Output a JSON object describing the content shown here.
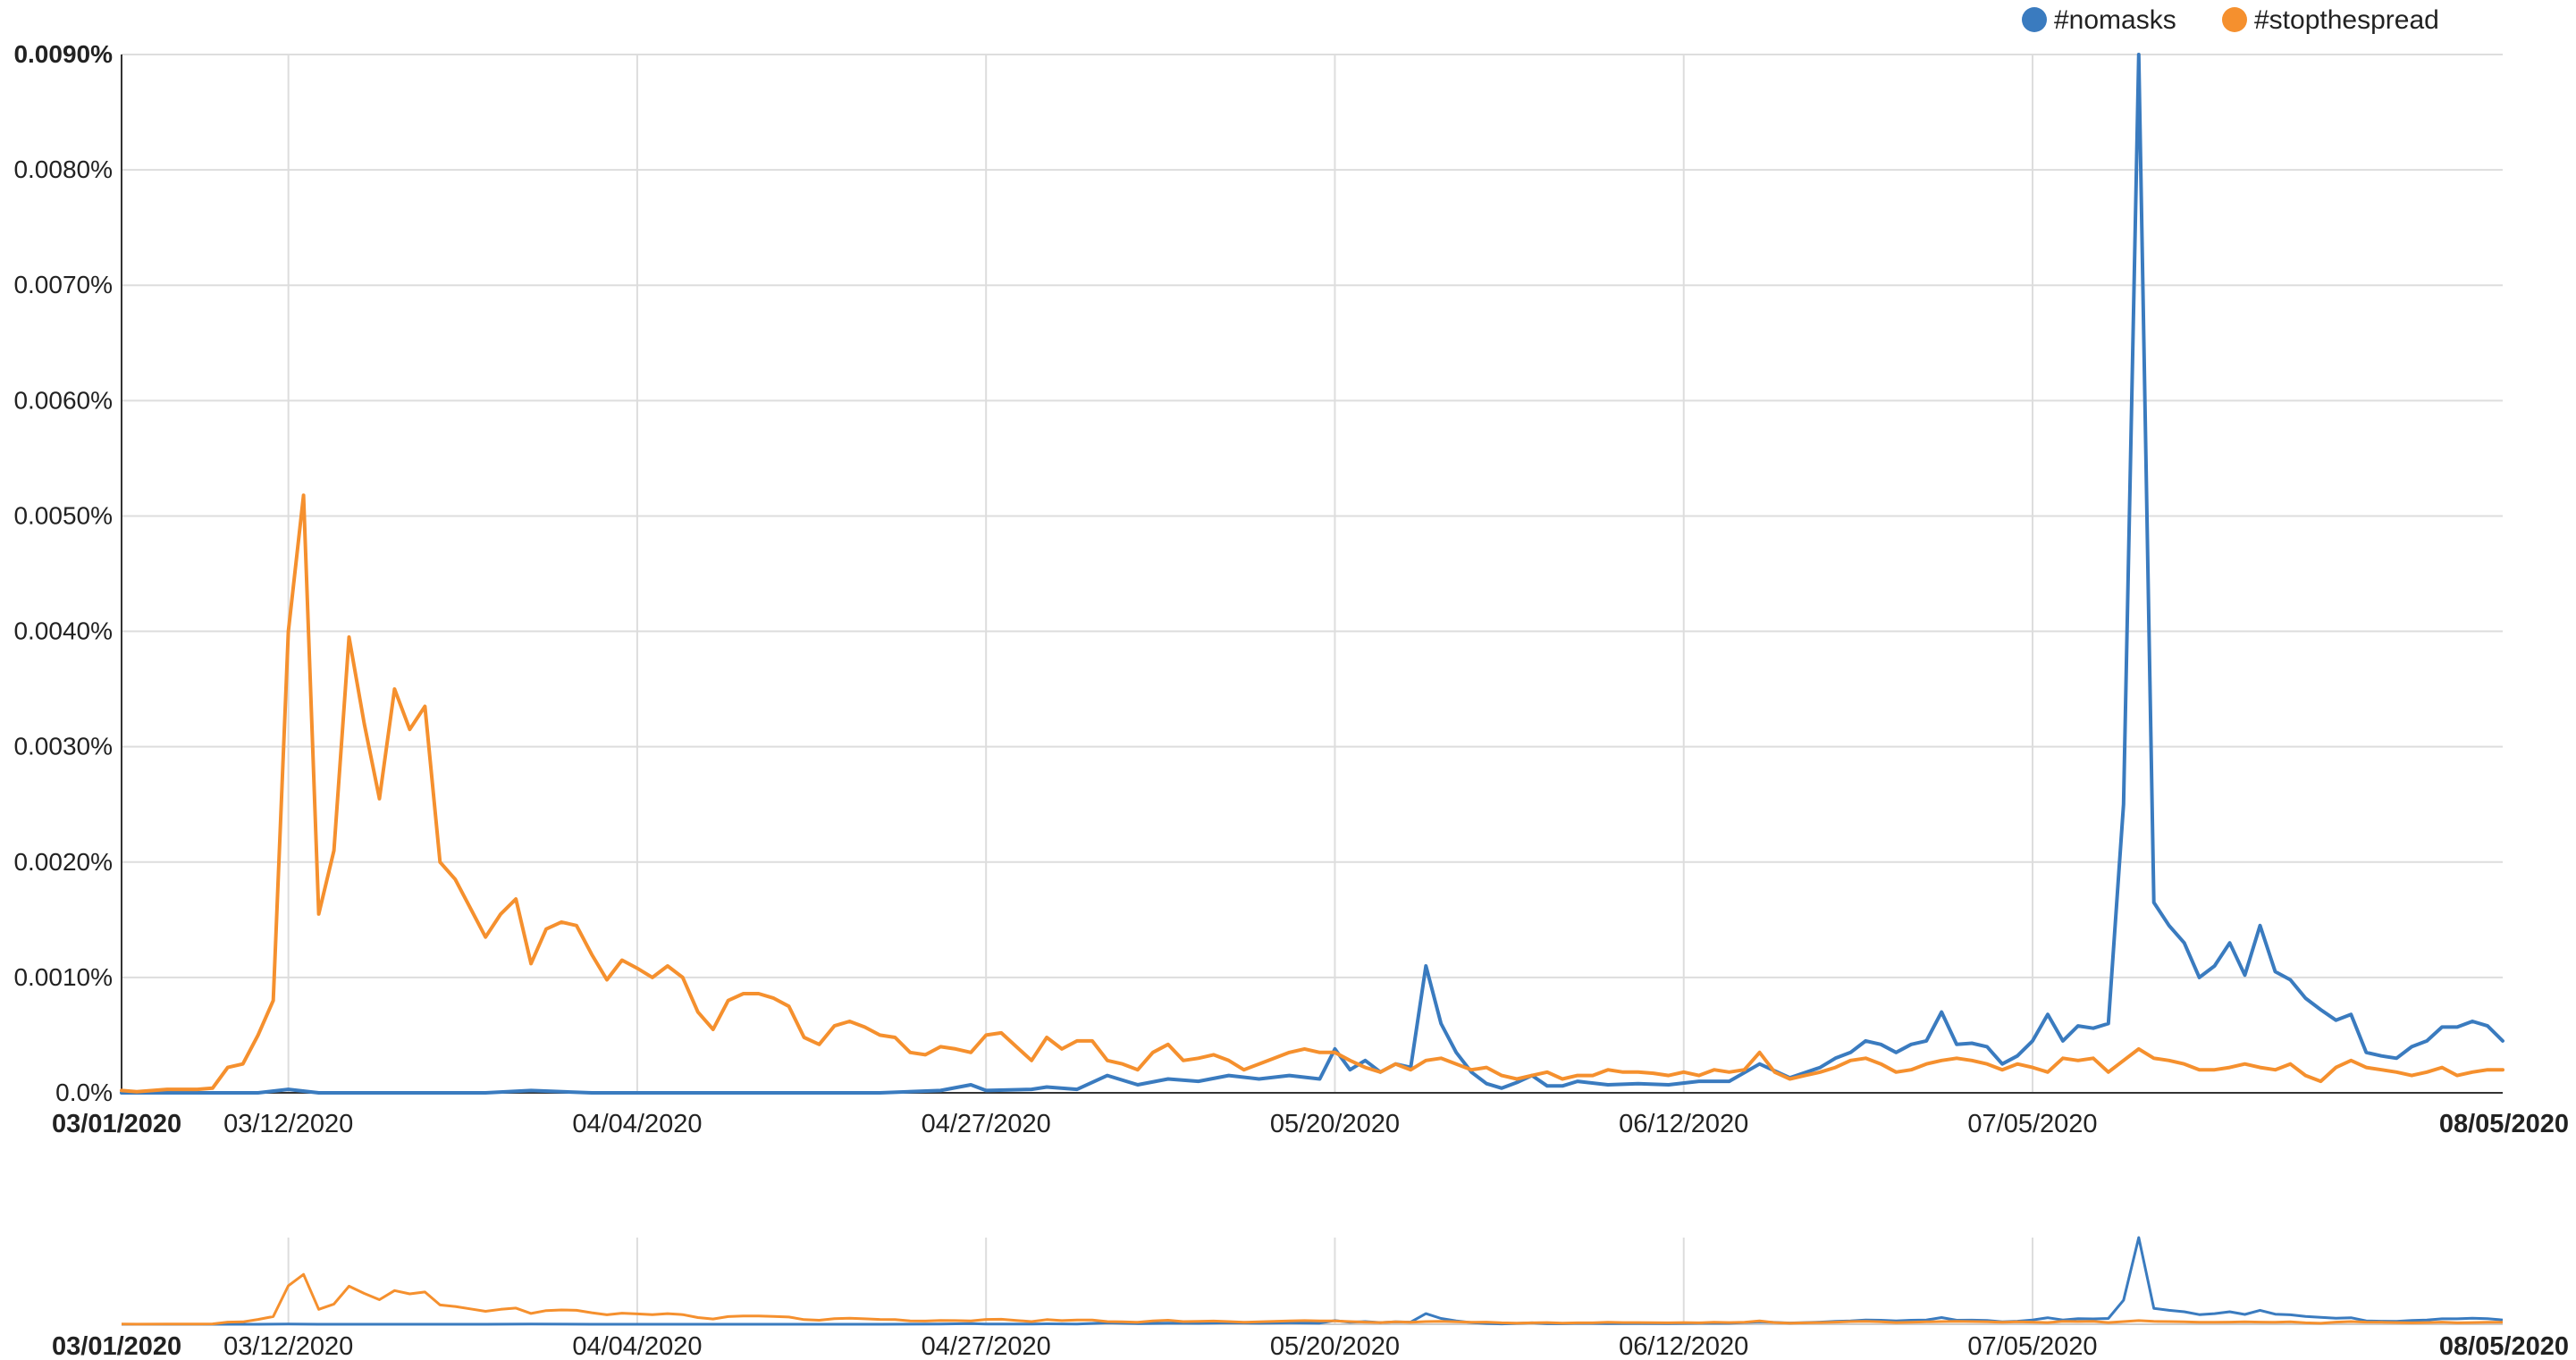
{
  "chart_data": {
    "type": "line",
    "title": "",
    "xlabel": "",
    "ylabel": "",
    "grid": true,
    "legend_position": "top-right",
    "x_range": [
      "2020-03-01",
      "2020-08-05"
    ],
    "ylim": [
      0,
      0.009
    ],
    "y_unit": "%",
    "y_ticks": [
      "0.0%",
      "0.0010%",
      "0.0020%",
      "0.0030%",
      "0.0040%",
      "0.0050%",
      "0.0060%",
      "0.0070%",
      "0.0080%",
      "0.0090%"
    ],
    "y_tick_values": [
      0,
      0.001,
      0.002,
      0.003,
      0.004,
      0.005,
      0.006,
      0.007,
      0.008,
      0.009
    ],
    "x_ticks": [
      "03/01/2020",
      "03/12/2020",
      "04/04/2020",
      "04/27/2020",
      "05/20/2020",
      "06/12/2020",
      "07/05/2020",
      "08/05/2020"
    ],
    "x_tick_dates": [
      "2020-03-01",
      "2020-03-12",
      "2020-04-04",
      "2020-04-27",
      "2020-05-20",
      "2020-06-12",
      "2020-07-05",
      "2020-08-05"
    ],
    "series": [
      {
        "name": "#nomasks",
        "color": "#3a7bbf",
        "points": [
          [
            "2020-03-01",
            0
          ],
          [
            "2020-03-06",
            0
          ],
          [
            "2020-03-10",
            0
          ],
          [
            "2020-03-12",
            3e-05
          ],
          [
            "2020-03-14",
            0
          ],
          [
            "2020-03-20",
            0
          ],
          [
            "2020-03-25",
            0
          ],
          [
            "2020-03-28",
            2e-05
          ],
          [
            "2020-04-01",
            0
          ],
          [
            "2020-04-10",
            0
          ],
          [
            "2020-04-20",
            0
          ],
          [
            "2020-04-24",
            2e-05
          ],
          [
            "2020-04-26",
            7e-05
          ],
          [
            "2020-04-27",
            2e-05
          ],
          [
            "2020-04-30",
            3e-05
          ],
          [
            "2020-05-01",
            5e-05
          ],
          [
            "2020-05-03",
            3e-05
          ],
          [
            "2020-05-05",
            0.00015
          ],
          [
            "2020-05-07",
            7e-05
          ],
          [
            "2020-05-09",
            0.00012
          ],
          [
            "2020-05-11",
            0.0001
          ],
          [
            "2020-05-13",
            0.00015
          ],
          [
            "2020-05-15",
            0.00012
          ],
          [
            "2020-05-17",
            0.00015
          ],
          [
            "2020-05-19",
            0.00012
          ],
          [
            "2020-05-20",
            0.00038
          ],
          [
            "2020-05-21",
            0.0002
          ],
          [
            "2020-05-22",
            0.00028
          ],
          [
            "2020-05-23",
            0.00018
          ],
          [
            "2020-05-24",
            0.00025
          ],
          [
            "2020-05-25",
            0.00022
          ],
          [
            "2020-05-26",
            0.0011
          ],
          [
            "2020-05-27",
            0.0006
          ],
          [
            "2020-05-28",
            0.00035
          ],
          [
            "2020-05-29",
            0.00018
          ],
          [
            "2020-05-30",
            8e-05
          ],
          [
            "2020-05-31",
            4e-05
          ],
          [
            "2020-06-01",
            9e-05
          ],
          [
            "2020-06-02",
            0.00015
          ],
          [
            "2020-06-03",
            6e-05
          ],
          [
            "2020-06-04",
            6e-05
          ],
          [
            "2020-06-05",
            0.0001
          ],
          [
            "2020-06-07",
            7e-05
          ],
          [
            "2020-06-09",
            8e-05
          ],
          [
            "2020-06-11",
            7e-05
          ],
          [
            "2020-06-13",
            0.0001
          ],
          [
            "2020-06-15",
            0.0001
          ],
          [
            "2020-06-17",
            0.00025
          ],
          [
            "2020-06-19",
            0.00013
          ],
          [
            "2020-06-21",
            0.00022
          ],
          [
            "2020-06-22",
            0.0003
          ],
          [
            "2020-06-23",
            0.00035
          ],
          [
            "2020-06-24",
            0.00045
          ],
          [
            "2020-06-25",
            0.00042
          ],
          [
            "2020-06-26",
            0.00035
          ],
          [
            "2020-06-27",
            0.00042
          ],
          [
            "2020-06-28",
            0.00045
          ],
          [
            "2020-06-29",
            0.0007
          ],
          [
            "2020-06-30",
            0.00042
          ],
          [
            "2020-07-01",
            0.00043
          ],
          [
            "2020-07-02",
            0.0004
          ],
          [
            "2020-07-03",
            0.00025
          ],
          [
            "2020-07-04",
            0.00032
          ],
          [
            "2020-07-05",
            0.00045
          ],
          [
            "2020-07-06",
            0.00068
          ],
          [
            "2020-07-07",
            0.00045
          ],
          [
            "2020-07-08",
            0.00058
          ],
          [
            "2020-07-09",
            0.00056
          ],
          [
            "2020-07-10",
            0.0006
          ],
          [
            "2020-07-11",
            0.0025
          ],
          [
            "2020-07-12",
            0.009
          ],
          [
            "2020-07-13",
            0.00165
          ],
          [
            "2020-07-14",
            0.00145
          ],
          [
            "2020-07-15",
            0.0013
          ],
          [
            "2020-07-16",
            0.001
          ],
          [
            "2020-07-17",
            0.0011
          ],
          [
            "2020-07-18",
            0.0013
          ],
          [
            "2020-07-19",
            0.00102
          ],
          [
            "2020-07-20",
            0.00145
          ],
          [
            "2020-07-21",
            0.00105
          ],
          [
            "2020-07-22",
            0.00098
          ],
          [
            "2020-07-23",
            0.00082
          ],
          [
            "2020-07-24",
            0.00072
          ],
          [
            "2020-07-25",
            0.00063
          ],
          [
            "2020-07-26",
            0.00068
          ],
          [
            "2020-07-27",
            0.00035
          ],
          [
            "2020-07-28",
            0.00032
          ],
          [
            "2020-07-29",
            0.0003
          ],
          [
            "2020-07-30",
            0.0004
          ],
          [
            "2020-07-31",
            0.00045
          ],
          [
            "2020-08-01",
            0.00057
          ],
          [
            "2020-08-02",
            0.00057
          ],
          [
            "2020-08-03",
            0.00062
          ],
          [
            "2020-08-04",
            0.00058
          ],
          [
            "2020-08-05",
            0.00045
          ]
        ]
      },
      {
        "name": "#stopthespread",
        "color": "#f5902e",
        "points": [
          [
            "2020-03-01",
            2e-05
          ],
          [
            "2020-03-02",
            1e-05
          ],
          [
            "2020-03-04",
            3e-05
          ],
          [
            "2020-03-06",
            3e-05
          ],
          [
            "2020-03-07",
            4e-05
          ],
          [
            "2020-03-08",
            0.00022
          ],
          [
            "2020-03-09",
            0.00025
          ],
          [
            "2020-03-10",
            0.0005
          ],
          [
            "2020-03-11",
            0.0008
          ],
          [
            "2020-03-12",
            0.004
          ],
          [
            "2020-03-13",
            0.00518
          ],
          [
            "2020-03-14",
            0.00155
          ],
          [
            "2020-03-15",
            0.0021
          ],
          [
            "2020-03-16",
            0.00395
          ],
          [
            "2020-03-17",
            0.0032
          ],
          [
            "2020-03-18",
            0.00255
          ],
          [
            "2020-03-19",
            0.0035
          ],
          [
            "2020-03-20",
            0.00315
          ],
          [
            "2020-03-21",
            0.00335
          ],
          [
            "2020-03-22",
            0.002
          ],
          [
            "2020-03-23",
            0.00185
          ],
          [
            "2020-03-24",
            0.0016
          ],
          [
            "2020-03-25",
            0.00135
          ],
          [
            "2020-03-26",
            0.00155
          ],
          [
            "2020-03-27",
            0.00168
          ],
          [
            "2020-03-28",
            0.00112
          ],
          [
            "2020-03-29",
            0.00142
          ],
          [
            "2020-03-30",
            0.00148
          ],
          [
            "2020-03-31",
            0.00145
          ],
          [
            "2020-04-01",
            0.0012
          ],
          [
            "2020-04-02",
            0.00098
          ],
          [
            "2020-04-03",
            0.00115
          ],
          [
            "2020-04-04",
            0.00108
          ],
          [
            "2020-04-05",
            0.001
          ],
          [
            "2020-04-06",
            0.0011
          ],
          [
            "2020-04-07",
            0.001
          ],
          [
            "2020-04-08",
            0.0007
          ],
          [
            "2020-04-09",
            0.00055
          ],
          [
            "2020-04-10",
            0.0008
          ],
          [
            "2020-04-11",
            0.00086
          ],
          [
            "2020-04-12",
            0.00086
          ],
          [
            "2020-04-13",
            0.00082
          ],
          [
            "2020-04-14",
            0.00075
          ],
          [
            "2020-04-15",
            0.00048
          ],
          [
            "2020-04-16",
            0.00042
          ],
          [
            "2020-04-17",
            0.00058
          ],
          [
            "2020-04-18",
            0.00062
          ],
          [
            "2020-04-19",
            0.00057
          ],
          [
            "2020-04-20",
            0.0005
          ],
          [
            "2020-04-21",
            0.00048
          ],
          [
            "2020-04-22",
            0.00035
          ],
          [
            "2020-04-23",
            0.00033
          ],
          [
            "2020-04-24",
            0.0004
          ],
          [
            "2020-04-25",
            0.00038
          ],
          [
            "2020-04-26",
            0.00035
          ],
          [
            "2020-04-27",
            0.0005
          ],
          [
            "2020-04-28",
            0.00052
          ],
          [
            "2020-04-29",
            0.0004
          ],
          [
            "2020-04-30",
            0.00028
          ],
          [
            "2020-05-01",
            0.00048
          ],
          [
            "2020-05-02",
            0.00038
          ],
          [
            "2020-05-03",
            0.00045
          ],
          [
            "2020-05-04",
            0.00045
          ],
          [
            "2020-05-05",
            0.00028
          ],
          [
            "2020-05-06",
            0.00025
          ],
          [
            "2020-05-07",
            0.0002
          ],
          [
            "2020-05-08",
            0.00035
          ],
          [
            "2020-05-09",
            0.00042
          ],
          [
            "2020-05-10",
            0.00028
          ],
          [
            "2020-05-11",
            0.0003
          ],
          [
            "2020-05-12",
            0.00033
          ],
          [
            "2020-05-13",
            0.00028
          ],
          [
            "2020-05-14",
            0.0002
          ],
          [
            "2020-05-15",
            0.00025
          ],
          [
            "2020-05-16",
            0.0003
          ],
          [
            "2020-05-17",
            0.00035
          ],
          [
            "2020-05-18",
            0.00038
          ],
          [
            "2020-05-19",
            0.00035
          ],
          [
            "2020-05-20",
            0.00035
          ],
          [
            "2020-05-21",
            0.00028
          ],
          [
            "2020-05-22",
            0.00022
          ],
          [
            "2020-05-23",
            0.00018
          ],
          [
            "2020-05-24",
            0.00025
          ],
          [
            "2020-05-25",
            0.0002
          ],
          [
            "2020-05-26",
            0.00028
          ],
          [
            "2020-05-27",
            0.0003
          ],
          [
            "2020-05-28",
            0.00025
          ],
          [
            "2020-05-29",
            0.0002
          ],
          [
            "2020-05-30",
            0.00022
          ],
          [
            "2020-05-31",
            0.00015
          ],
          [
            "2020-06-01",
            0.00012
          ],
          [
            "2020-06-02",
            0.00015
          ],
          [
            "2020-06-03",
            0.00018
          ],
          [
            "2020-06-04",
            0.00012
          ],
          [
            "2020-06-05",
            0.00015
          ],
          [
            "2020-06-06",
            0.00015
          ],
          [
            "2020-06-07",
            0.0002
          ],
          [
            "2020-06-08",
            0.00018
          ],
          [
            "2020-06-09",
            0.00018
          ],
          [
            "2020-06-10",
            0.00017
          ],
          [
            "2020-06-11",
            0.00015
          ],
          [
            "2020-06-12",
            0.00018
          ],
          [
            "2020-06-13",
            0.00015
          ],
          [
            "2020-06-14",
            0.0002
          ],
          [
            "2020-06-15",
            0.00018
          ],
          [
            "2020-06-16",
            0.0002
          ],
          [
            "2020-06-17",
            0.00035
          ],
          [
            "2020-06-18",
            0.00018
          ],
          [
            "2020-06-19",
            0.00012
          ],
          [
            "2020-06-20",
            0.00015
          ],
          [
            "2020-06-21",
            0.00018
          ],
          [
            "2020-06-22",
            0.00022
          ],
          [
            "2020-06-23",
            0.00028
          ],
          [
            "2020-06-24",
            0.0003
          ],
          [
            "2020-06-25",
            0.00025
          ],
          [
            "2020-06-26",
            0.00018
          ],
          [
            "2020-06-27",
            0.0002
          ],
          [
            "2020-06-28",
            0.00025
          ],
          [
            "2020-06-29",
            0.00028
          ],
          [
            "2020-06-30",
            0.0003
          ],
          [
            "2020-07-01",
            0.00028
          ],
          [
            "2020-07-02",
            0.00025
          ],
          [
            "2020-07-03",
            0.0002
          ],
          [
            "2020-07-04",
            0.00025
          ],
          [
            "2020-07-05",
            0.00022
          ],
          [
            "2020-07-06",
            0.00018
          ],
          [
            "2020-07-07",
            0.0003
          ],
          [
            "2020-07-08",
            0.00028
          ],
          [
            "2020-07-09",
            0.0003
          ],
          [
            "2020-07-10",
            0.00018
          ],
          [
            "2020-07-11",
            0.00028
          ],
          [
            "2020-07-12",
            0.00038
          ],
          [
            "2020-07-13",
            0.0003
          ],
          [
            "2020-07-14",
            0.00028
          ],
          [
            "2020-07-15",
            0.00025
          ],
          [
            "2020-07-16",
            0.0002
          ],
          [
            "2020-07-17",
            0.0002
          ],
          [
            "2020-07-18",
            0.00022
          ],
          [
            "2020-07-19",
            0.00025
          ],
          [
            "2020-07-20",
            0.00022
          ],
          [
            "2020-07-21",
            0.0002
          ],
          [
            "2020-07-22",
            0.00025
          ],
          [
            "2020-07-23",
            0.00015
          ],
          [
            "2020-07-24",
            0.0001
          ],
          [
            "2020-07-25",
            0.00022
          ],
          [
            "2020-07-26",
            0.00028
          ],
          [
            "2020-07-27",
            0.00022
          ],
          [
            "2020-07-28",
            0.0002
          ],
          [
            "2020-07-29",
            0.00018
          ],
          [
            "2020-07-30",
            0.00015
          ],
          [
            "2020-07-31",
            0.00018
          ],
          [
            "2020-08-01",
            0.00022
          ],
          [
            "2020-08-02",
            0.00015
          ],
          [
            "2020-08-03",
            0.00018
          ],
          [
            "2020-08-04",
            0.0002
          ],
          [
            "2020-08-05",
            0.0002
          ]
        ]
      }
    ]
  },
  "legend": {
    "items": [
      {
        "label": "#nomasks",
        "color": "#3a7bbf"
      },
      {
        "label": "#stopthespread",
        "color": "#f5902e"
      }
    ]
  },
  "navigator": {
    "x_ticks": [
      "03/01/2020",
      "03/12/2020",
      "04/04/2020",
      "04/27/2020",
      "05/20/2020",
      "06/12/2020",
      "07/05/2020",
      "08/05/2020"
    ]
  },
  "styles": {
    "grid_color": "#dddddd",
    "axis_color": "#333333",
    "navigator_border": "#cccccc"
  }
}
